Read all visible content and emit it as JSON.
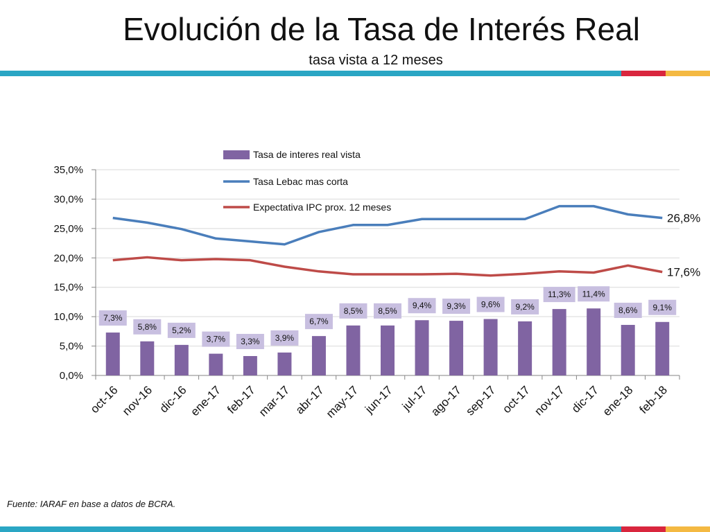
{
  "title": "Evolución de la Tasa de Interés Real",
  "subtitle": "tasa vista a 12 meses",
  "source": "Fuente: IARAF en base a datos de BCRA.",
  "colors": {
    "band_blue": "#2aa6c4",
    "band_red": "#d9263e",
    "band_gold": "#f4b942",
    "bars": "#8064a2",
    "label_box": "#c8bfe0",
    "lebac_line": "#4a7ebb",
    "ipc_line": "#be4b48",
    "grid": "#d9d9d9"
  },
  "chart_data": {
    "type": "bar",
    "categories": [
      "oct-16",
      "nov-16",
      "dic-16",
      "ene-17",
      "feb-17",
      "mar-17",
      "abr-17",
      "may-17",
      "jun-17",
      "jul-17",
      "ago-17",
      "sep-17",
      "oct-17",
      "nov-17",
      "dic-17",
      "ene-18",
      "feb-18"
    ],
    "ylim": [
      0,
      35
    ],
    "yticks": [
      "0,0%",
      "5,0%",
      "10,0%",
      "15,0%",
      "20,0%",
      "25,0%",
      "30,0%",
      "35,0%"
    ],
    "ytick_values": [
      0,
      5,
      10,
      15,
      20,
      25,
      30,
      35
    ],
    "grid": true,
    "legend_position": "top-center",
    "series": [
      {
        "name": "Tasa de interes real vista",
        "type": "bar",
        "values": [
          7.3,
          5.8,
          5.2,
          3.7,
          3.3,
          3.9,
          6.7,
          8.5,
          8.5,
          9.4,
          9.3,
          9.6,
          9.2,
          11.3,
          11.4,
          8.6,
          9.1
        ],
        "labels": [
          "7,3%",
          "5,8%",
          "5,2%",
          "3,7%",
          "3,3%",
          "3,9%",
          "6,7%",
          "8,5%",
          "8,5%",
          "9,4%",
          "9,3%",
          "9,6%",
          "9,2%",
          "11,3%",
          "11,4%",
          "8,6%",
          "9,1%"
        ]
      },
      {
        "name": "Tasa Lebac mas corta",
        "type": "line",
        "values": [
          26.8,
          26.0,
          24.9,
          23.3,
          22.8,
          22.3,
          24.4,
          25.6,
          25.6,
          26.6,
          26.6,
          26.6,
          26.6,
          28.8,
          28.8,
          27.4,
          26.8
        ],
        "end_label": "26,8%"
      },
      {
        "name": "Expectativa IPC prox. 12 meses",
        "type": "line",
        "values": [
          19.6,
          20.1,
          19.6,
          19.8,
          19.6,
          18.5,
          17.7,
          17.2,
          17.2,
          17.2,
          17.3,
          17.0,
          17.3,
          17.7,
          17.5,
          18.7,
          17.6
        ],
        "end_label": "17,6%"
      }
    ]
  }
}
